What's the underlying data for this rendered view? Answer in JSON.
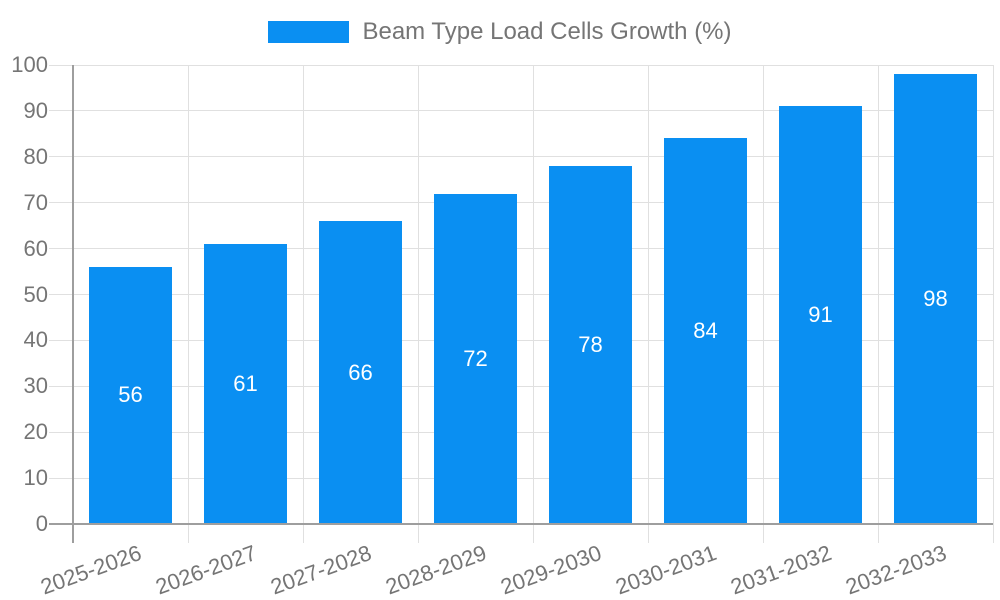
{
  "legend": {
    "label": "Beam Type Load Cells Growth (%)"
  },
  "chart_data": {
    "type": "bar",
    "title": "Beam Type Load Cells Growth (%)",
    "categories": [
      "2025-2026",
      "2026-2027",
      "2027-2028",
      "2028-2029",
      "2029-2030",
      "2030-2031",
      "2031-2032",
      "2032-2033"
    ],
    "values": [
      56,
      61,
      66,
      72,
      78,
      84,
      91,
      98
    ],
    "series": [
      {
        "name": "Beam Type Load Cells Growth (%)",
        "values": [
          56,
          61,
          66,
          72,
          78,
          84,
          91,
          98
        ]
      }
    ],
    "xlabel": "",
    "ylabel": "",
    "ylim": [
      0,
      100
    ],
    "yticks": [
      0,
      10,
      20,
      30,
      40,
      50,
      60,
      70,
      80,
      90,
      100
    ],
    "grid": true,
    "legend_position": "top",
    "bar_labels_shown": true,
    "x_label_rotation_deg": -20,
    "colors": {
      "bar": "#0a8ff2",
      "bar_label": "#ffffff",
      "axis_text": "#757575",
      "gridline": "#e0e0e0",
      "axis_line": "#9e9e9e",
      "background": "#ffffff"
    }
  }
}
